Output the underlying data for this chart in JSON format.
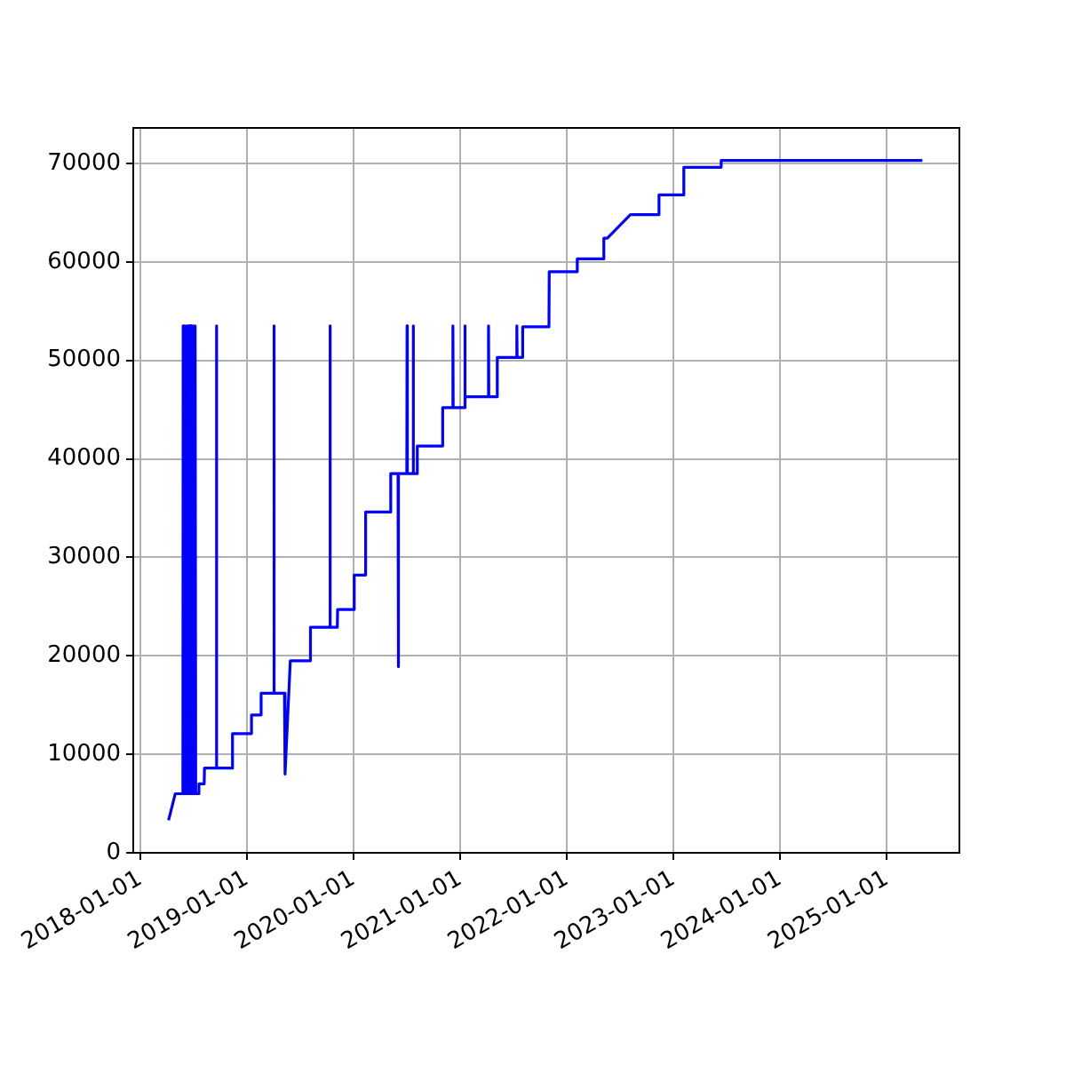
{
  "chart_data": {
    "type": "line",
    "series": [
      {
        "color": "#0000ff",
        "x": [
          "2018-04-08",
          "2018-05-01",
          "2018-05-27",
          "2018-05-28",
          "2018-05-30",
          "2018-06-02",
          "2018-06-04",
          "2018-06-07",
          "2018-06-09",
          "2018-06-12",
          "2018-06-14",
          "2018-06-18",
          "2018-06-20",
          "2018-06-24",
          "2018-06-26",
          "2018-07-01",
          "2018-07-03",
          "2018-07-08",
          "2018-07-10",
          "2018-07-20",
          "2018-07-21",
          "2018-08-08",
          "2018-08-09",
          "2018-09-18",
          "2018-09-19",
          "2018-09-20",
          "2018-11-12",
          "2018-11-13",
          "2019-01-16",
          "2019-01-17",
          "2019-02-18",
          "2019-02-19",
          "2019-04-03",
          "2019-04-04",
          "2019-04-05",
          "2019-05-10",
          "2019-05-12",
          "2019-05-30",
          "2019-08-06",
          "2019-08-07",
          "2019-10-12",
          "2019-10-13",
          "2019-10-14",
          "2019-11-07",
          "2019-11-08",
          "2020-01-03",
          "2020-01-04",
          "2020-02-11",
          "2020-02-12",
          "2020-05-07",
          "2020-05-08",
          "2020-06-02",
          "2020-06-03",
          "2020-06-04",
          "2020-07-02",
          "2020-07-03",
          "2020-07-04",
          "2020-07-23",
          "2020-07-24",
          "2020-07-25",
          "2020-08-06",
          "2020-08-07",
          "2020-11-01",
          "2020-11-02",
          "2020-12-06",
          "2020-12-07",
          "2020-12-08",
          "2021-01-16",
          "2021-01-17",
          "2021-01-18",
          "2021-04-07",
          "2021-04-08",
          "2021-04-09",
          "2021-05-07",
          "2021-05-08",
          "2021-07-13",
          "2021-07-14",
          "2021-07-15",
          "2021-08-02",
          "2021-08-03",
          "2021-11-01",
          "2021-11-02",
          "2022-02-05",
          "2022-02-06",
          "2022-05-07",
          "2022-05-08",
          "2022-05-20",
          "2022-08-07",
          "2022-11-12",
          "2022-11-13",
          "2023-02-05",
          "2023-02-06",
          "2023-06-13",
          "2023-06-14",
          "2025-05-03"
        ],
        "values": [
          3300,
          6000,
          6000,
          53500,
          6000,
          53500,
          6000,
          53500,
          6000,
          53500,
          6000,
          53500,
          6000,
          53500,
          6000,
          53500,
          6000,
          53500,
          6000,
          6000,
          7000,
          7000,
          8600,
          8600,
          53500,
          8600,
          8600,
          12100,
          12100,
          14000,
          14000,
          16200,
          16200,
          53500,
          16200,
          16200,
          8000,
          19500,
          19500,
          22900,
          22900,
          53500,
          22900,
          22900,
          24700,
          24700,
          28200,
          28200,
          34600,
          34600,
          38500,
          38500,
          18900,
          38500,
          38500,
          53500,
          38500,
          38500,
          53500,
          38500,
          38500,
          41300,
          41300,
          45200,
          45200,
          53500,
          45200,
          45200,
          53500,
          46300,
          46300,
          53500,
          46300,
          46300,
          50300,
          50300,
          53500,
          50300,
          50300,
          53400,
          53400,
          59000,
          59000,
          60300,
          60300,
          62400,
          62400,
          64800,
          64800,
          66800,
          66800,
          69600,
          69600,
          70300,
          70300
        ]
      }
    ],
    "xlim": [
      "2017-12-08",
      "2025-09-07"
    ],
    "xticks": [
      "2018-01-01",
      "2019-01-01",
      "2020-01-01",
      "2021-01-01",
      "2022-01-01",
      "2023-01-01",
      "2024-01-01",
      "2025-01-01"
    ],
    "ylim": [
      0,
      73600
    ],
    "yticks": [
      0,
      10000,
      20000,
      30000,
      40000,
      50000,
      60000,
      70000
    ],
    "grid": true
  }
}
